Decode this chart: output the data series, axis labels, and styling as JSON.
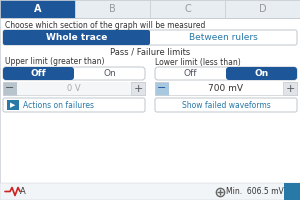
{
  "bg_color": "#f2f5f7",
  "white": "#ffffff",
  "blue_dark": "#1e5799",
  "blue_mid": "#2878a8",
  "border_color": "#c8cdd2",
  "tab_inactive_bg": "#e8edf2",
  "tab_inactive_text": "#999999",
  "text_dark": "#333333",
  "text_mid": "#555566",
  "text_light": "#aaaaaa",
  "tabs": [
    "A",
    "B",
    "C",
    "D"
  ],
  "trace_btn_active": "Whole trace",
  "trace_btn_inactive": "Between rulers",
  "pass_fail_title": "Pass / Failure limits",
  "upper_label": "Upper limit (greater than)",
  "lower_label": "Lower limit (less than)",
  "upper_value": "0 V",
  "lower_value": "700 mV",
  "choose_text": "Choose which section of the graph will be measured",
  "action_btn": "Actions on failures",
  "show_btn": "Show failed waveforms",
  "bottom_left_text": "A",
  "bottom_right_text": "Min.  606.5 mV",
  "minus_bg": "#b8c4cc",
  "minus_active_bg": "#a8c8e0",
  "plus_bg": "#e0e4e8",
  "input_bg": "#f4f6f8",
  "input_active_bg": "#ffffff"
}
